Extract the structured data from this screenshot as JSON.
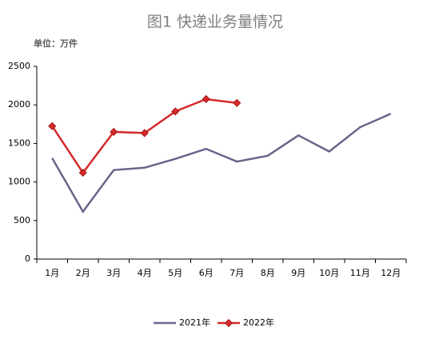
{
  "chart_data": {
    "type": "line",
    "title": "图1 快递业务量情况",
    "unit_label": "单位：万件",
    "categories": [
      "1月",
      "2月",
      "3月",
      "4月",
      "5月",
      "6月",
      "7月",
      "8月",
      "9月",
      "10月",
      "11月",
      "12月"
    ],
    "series": [
      {
        "name": "2021年",
        "color": "#66668a",
        "values": [
          1310,
          615,
          1155,
          1185,
          1300,
          1430,
          1265,
          1340,
          1605,
          1395,
          1710,
          1885
        ]
      },
      {
        "name": "2022年",
        "color": "#d42a2a",
        "marker": "diamond",
        "values": [
          1725,
          1120,
          1650,
          1635,
          1915,
          2075,
          2025,
          null,
          null,
          null,
          null,
          null
        ]
      }
    ],
    "ylim": [
      0,
      2500
    ],
    "yticks": [
      0,
      500,
      1000,
      1500,
      2000,
      2500
    ],
    "grid": false,
    "legend": "bottom"
  }
}
